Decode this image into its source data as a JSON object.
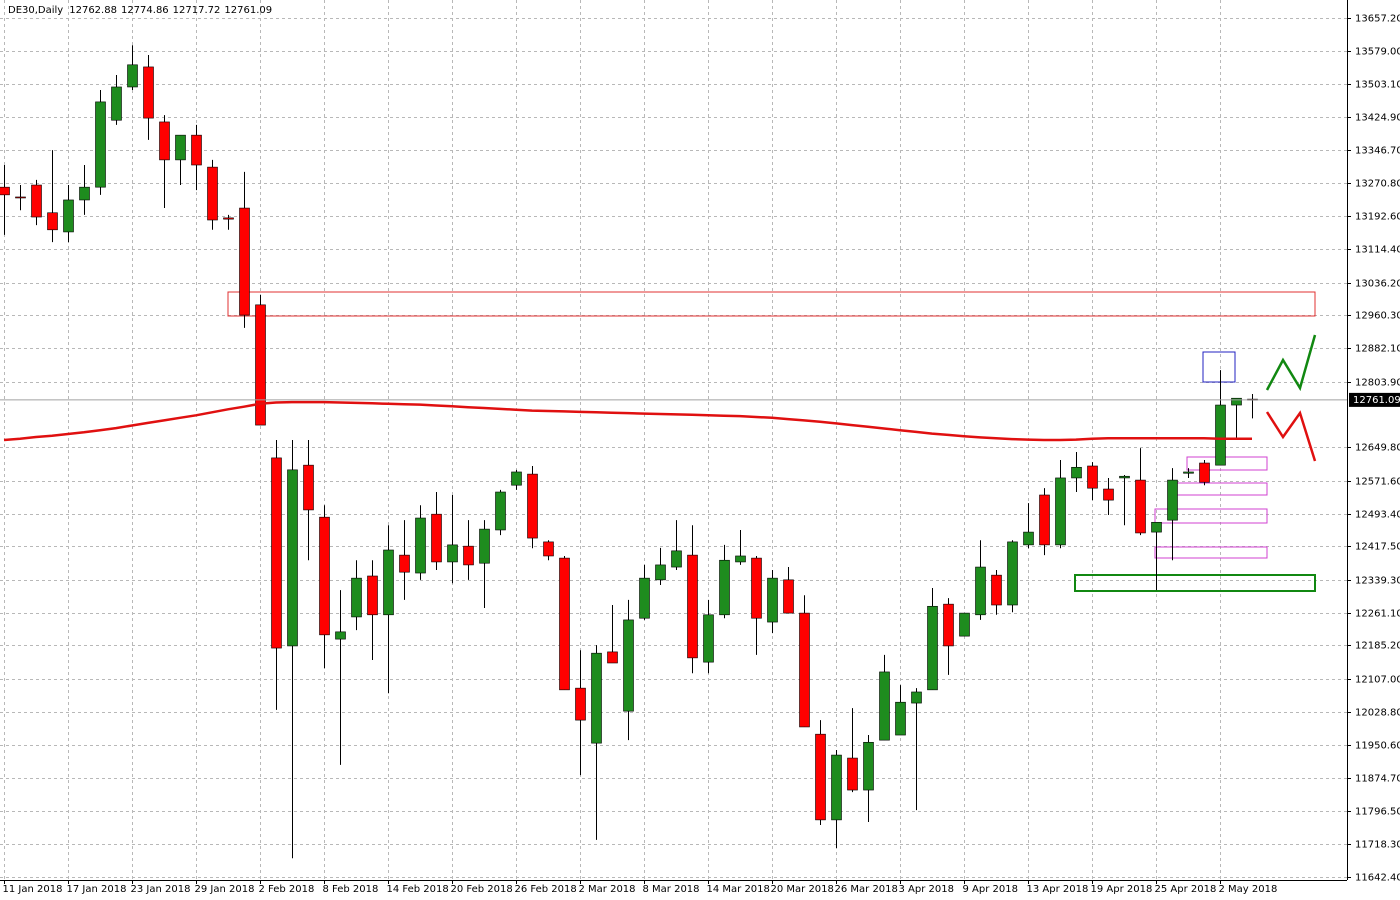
{
  "chart_data": {
    "type": "candlestick",
    "title": "DE30,Daily",
    "categories": [
      "11 Jan 2018",
      null,
      null,
      null,
      "17 Jan 2018",
      null,
      null,
      null,
      "23 Jan 2018",
      null,
      null,
      null,
      "29 Jan 2018",
      null,
      null,
      null,
      "2 Feb 2018",
      null,
      null,
      null,
      "8 Feb 2018",
      null,
      null,
      null,
      "14 Feb 2018",
      null,
      null,
      null,
      "20 Feb 2018",
      null,
      null,
      null,
      "26 Feb 2018",
      null,
      null,
      null,
      "2 Mar 2018",
      null,
      null,
      null,
      "8 Mar 2018",
      null,
      null,
      null,
      "14 Mar 2018",
      null,
      null,
      null,
      "20 Mar 2018",
      null,
      null,
      null,
      "26 Mar 2018",
      null,
      null,
      null,
      "3 Apr 2018",
      null,
      null,
      null,
      "9 Apr 2018",
      null,
      null,
      null,
      "13 Apr 2018",
      null,
      null,
      null,
      "19 Apr 2018",
      null,
      null,
      null,
      "25 Apr 2018",
      null,
      null,
      null,
      "2 May 2018",
      null,
      null
    ],
    "open": [
      13260,
      13237,
      13265,
      13200,
      13155,
      13230,
      13260,
      13417,
      13495,
      13542,
      13413,
      13324,
      13382,
      13307,
      13188,
      13211,
      12984,
      12625,
      12184,
      12608,
      12486,
      12200,
      12252,
      12348,
      12257,
      12397,
      12355,
      12493,
      12381,
      12418,
      12378,
      12456,
      12561,
      12587,
      12428,
      12390,
      12085,
      11956,
      12170,
      12031,
      12249,
      12339,
      12369,
      12397,
      12146,
      12257,
      12381,
      12390,
      12240,
      12339,
      12261,
      11977,
      11776,
      11921,
      11846,
      11963,
      11975,
      12050,
      12081,
      12282,
      12207,
      12257,
      12350,
      12280,
      12421,
      12538,
      12421,
      12578,
      12606,
      12552,
      12578,
      12573,
      12451,
      12479,
      12589,
      12613,
      12608,
      12749,
      12762.88
    ],
    "high": [
      13312,
      13265,
      13277,
      13347,
      13265,
      13312,
      13488,
      13523,
      13593,
      13570,
      13429,
      13382,
      13406,
      13324,
      13195,
      13296,
      13007,
      12667,
      12667,
      12667,
      12514,
      12315,
      12385,
      12385,
      12467,
      12479,
      12514,
      12545,
      12538,
      12479,
      12479,
      12550,
      12597,
      12606,
      12432,
      12395,
      12174,
      12186,
      12280,
      12292,
      12374,
      12414,
      12479,
      12467,
      12292,
      12421,
      12456,
      12395,
      12362,
      12369,
      12303,
      12010,
      11940,
      12038,
      11975,
      12163,
      12092,
      12085,
      12320,
      12296,
      12261,
      12432,
      12362,
      12432,
      12519,
      12554,
      12620,
      12639,
      12615,
      12578,
      12585,
      12648,
      12474,
      12601,
      12601,
      12620,
      12831,
      12765,
      12774.86
    ],
    "low": [
      13148,
      13206,
      13171,
      13131,
      13131,
      13195,
      13242,
      13406,
      13488,
      13371,
      13211,
      13265,
      13253,
      13160,
      13160,
      12930,
      12702,
      12034,
      11686,
      12385,
      12132,
      11905,
      12221,
      12151,
      12073,
      12292,
      12339,
      12362,
      12331,
      12339,
      12273,
      12444,
      12550,
      12413,
      12385,
      12081,
      11881,
      11729,
      12144,
      11963,
      12245,
      12327,
      12362,
      12120,
      12120,
      12249,
      12374,
      12163,
      12214,
      12261,
      11994,
      11764,
      11710,
      11841,
      11771,
      11963,
      11975,
      11799,
      12081,
      12116,
      12207,
      12245,
      12257,
      12263,
      12413,
      12397,
      12413,
      12545,
      12526,
      12491,
      12467,
      12444,
      12315,
      12385,
      12578,
      12561,
      12608,
      12667,
      12717.72
    ],
    "close": [
      13242,
      13235,
      13190,
      13160,
      13230,
      13260,
      13460,
      13495,
      13547,
      13422,
      13324,
      13382,
      13312,
      13183,
      13185,
      12960,
      12702,
      12179,
      12597,
      12503,
      12210,
      12217,
      12343,
      12257,
      12409,
      12357,
      12484,
      12381,
      12421,
      12374,
      12458,
      12545,
      12592,
      12437,
      12395,
      12081,
      12010,
      12167,
      12144,
      12245,
      12343,
      12374,
      12407,
      12156,
      12257,
      12385,
      12395,
      12249,
      12343,
      12261,
      11994,
      11776,
      11928,
      11846,
      11958,
      12123,
      12052,
      12076,
      12277,
      12184,
      12261,
      12369,
      12280,
      12428,
      12451,
      12421,
      12578,
      12603,
      12554,
      12526,
      12582,
      12449,
      12474,
      12573,
      12592,
      12568,
      12749,
      12765,
      12761.09
    ],
    "ma": [
      12667,
      12670,
      12674,
      12677,
      12681,
      12685,
      12690,
      12695,
      12701,
      12707,
      12713,
      12719,
      12725,
      12732,
      12739,
      12745,
      12752,
      12755,
      12756,
      12756,
      12756,
      12755,
      12754,
      12753,
      12752,
      12751,
      12750,
      12748,
      12746,
      12744,
      12742,
      12740,
      12738,
      12736,
      12735,
      12734,
      12733,
      12732,
      12731,
      12730,
      12729,
      12728,
      12727,
      12726,
      12725,
      12724,
      12723,
      12721,
      12719,
      12716,
      12713,
      12710,
      12706,
      12702,
      12698,
      12694,
      12690,
      12686,
      12682,
      12679,
      12676,
      12673,
      12671,
      12669,
      12668,
      12667,
      12667,
      12668,
      12670,
      12671,
      12671,
      12671,
      12671,
      12671,
      12671,
      12671,
      12670,
      12670,
      12670
    ],
    "up_color": "#1e8c1e",
    "down_color": "#ff0000",
    "ma_color": "#e01010",
    "ylim": [
      11635,
      13699
    ],
    "yticks": [
      {
        "value": 13657.2,
        "label": "13657.20"
      },
      {
        "value": 13579,
        "label": "13579.00"
      },
      {
        "value": 13503.1,
        "label": "13503.10"
      },
      {
        "value": 13424.9,
        "label": "13424.90"
      },
      {
        "value": 13346.7,
        "label": "13346.70"
      },
      {
        "value": 13270.8,
        "label": "13270.80"
      },
      {
        "value": 13192.6,
        "label": "13192.60"
      },
      {
        "value": 13114.4,
        "label": "13114.40"
      },
      {
        "value": 13036.2,
        "label": "13036.20"
      },
      {
        "value": 12960.3,
        "label": "12960.30"
      },
      {
        "value": 12882.1,
        "label": "12882.10"
      },
      {
        "value": 12803.9,
        "label": "12803.90"
      },
      {
        "value": 12649.8,
        "label": "12649.80"
      },
      {
        "value": 12571.6,
        "label": "12571.60"
      },
      {
        "value": 12493.4,
        "label": "12493.40"
      },
      {
        "value": 12417.5,
        "label": "12417.50"
      },
      {
        "value": 12339.3,
        "label": "12339.30"
      },
      {
        "value": 12261.1,
        "label": "12261.10"
      },
      {
        "value": 12185.2,
        "label": "12185.20"
      },
      {
        "value": 12107,
        "label": "12107.00"
      },
      {
        "value": 12028.8,
        "label": "12028.80"
      },
      {
        "value": 11950.6,
        "label": "11950.60"
      },
      {
        "value": 11874.7,
        "label": "11874.70"
      },
      {
        "value": 11796.5,
        "label": "11796.50"
      },
      {
        "value": 11718.3,
        "label": "11718.30"
      },
      {
        "value": 11642.4,
        "label": "11642.40"
      }
    ],
    "grid": true
  }
}
